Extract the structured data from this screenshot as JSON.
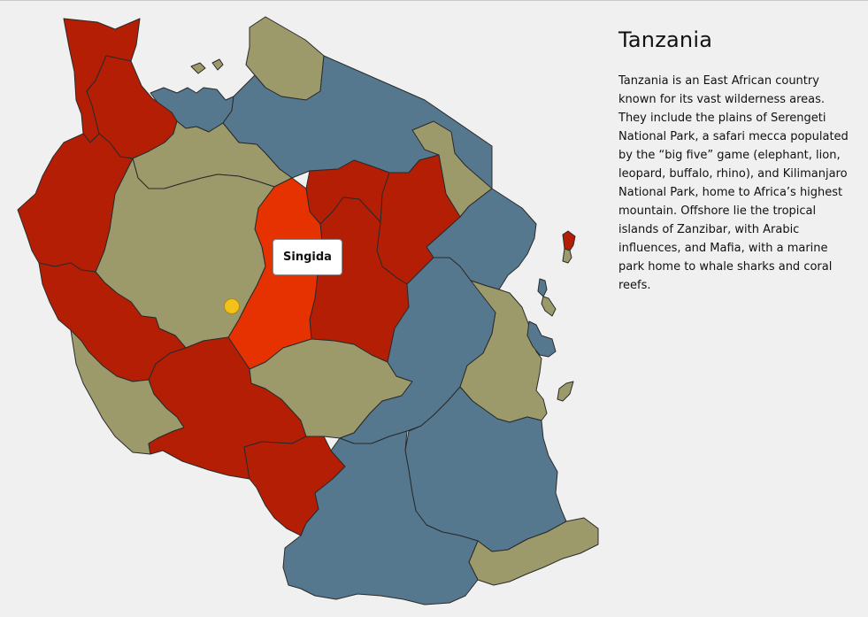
{
  "country": {
    "name": "Tanzania",
    "description": "Tanzania is an East African country known for its vast wilderness areas. They include the plains of Serengeti National Park, a safari mecca populated by the “big five” game (elephant, lion, leopard, buffalo, rhino), and Kilimanjaro National Park, home to Africa’s highest mountain. Offshore lie the tropical islands of Zanzibar, with Arabic influences, and Mafia, with a marine park home to whale sharks and coral reefs."
  },
  "tooltip": {
    "label": "Singida"
  },
  "colors": {
    "red": "#b41e05",
    "highlight": "#e63200",
    "olive": "#9c9a6a",
    "blue": "#56788f",
    "marker": "#f2c21b",
    "background": "#f0f0f0"
  }
}
